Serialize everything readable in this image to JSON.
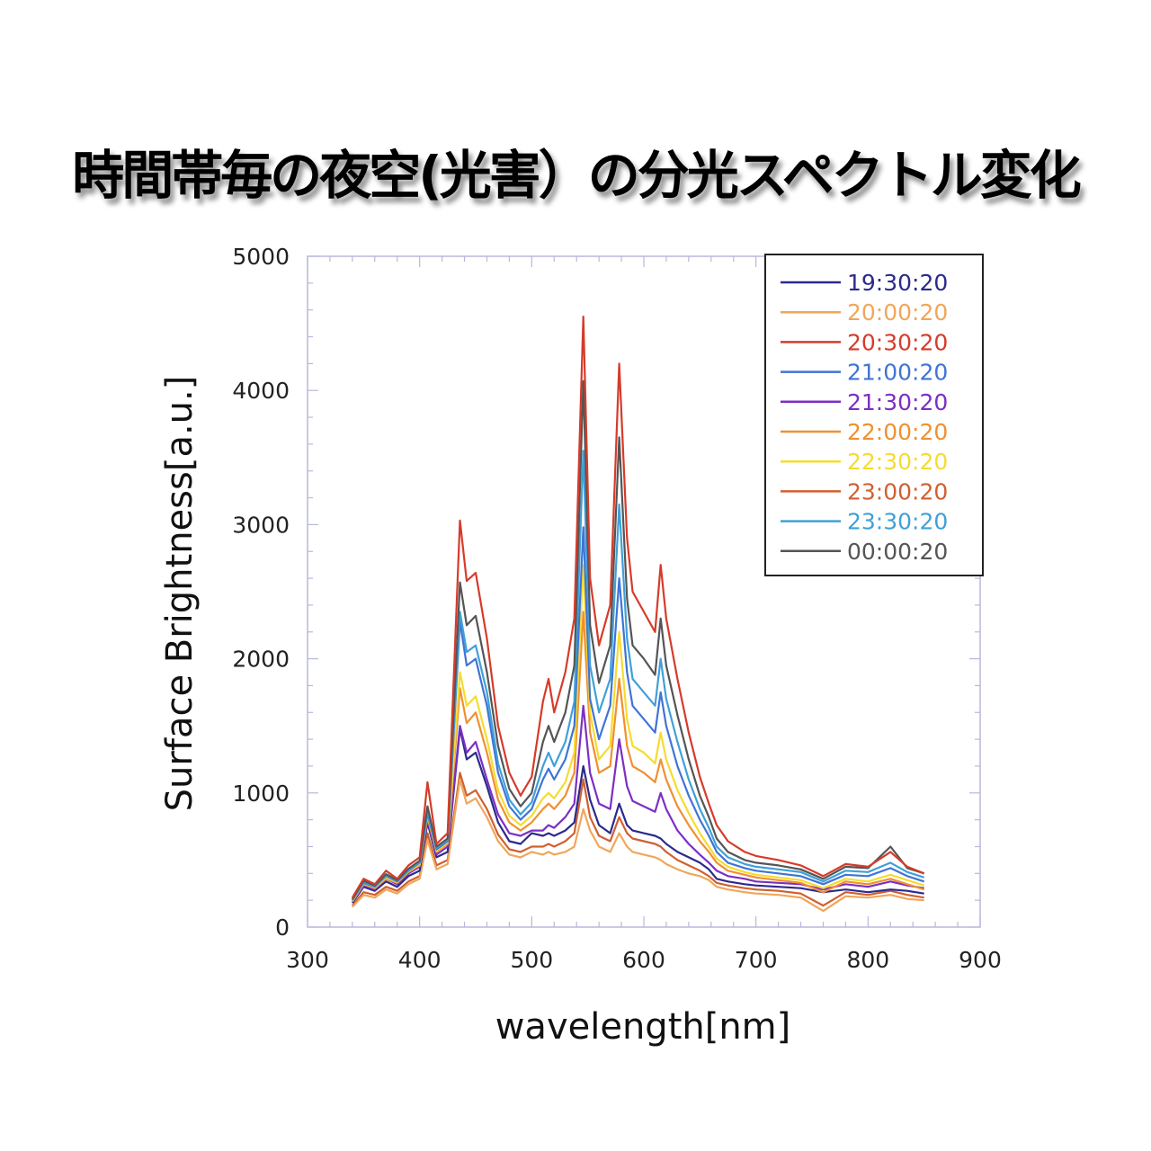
{
  "title": "時間帯毎の夜空(光害）の分光スペクトル変化",
  "chart_data": {
    "type": "line",
    "title": "時間帯毎の夜空(光害）の分光スペクトル変化",
    "xlabel": "wavelength[nm]",
    "ylabel": "Surface Brightness[a.u.]",
    "xlim": [
      300,
      900
    ],
    "ylim": [
      0,
      5000
    ],
    "xticks": [
      "300",
      "400",
      "500",
      "600",
      "700",
      "800",
      "900"
    ],
    "yticks": [
      "0",
      "1000",
      "2000",
      "3000",
      "4000",
      "5000"
    ],
    "grid": false,
    "legend_position": "top-right",
    "x": [
      340,
      350,
      360,
      370,
      380,
      390,
      400,
      407,
      415,
      425,
      436,
      442,
      450,
      460,
      470,
      480,
      490,
      500,
      510,
      515,
      520,
      530,
      538,
      546,
      552,
      560,
      570,
      578,
      585,
      590,
      600,
      610,
      615,
      620,
      630,
      640,
      650,
      658,
      665,
      675,
      690,
      700,
      720,
      740,
      760,
      780,
      800,
      820,
      835,
      850
    ],
    "series": [
      {
        "name": "19:30:20",
        "color": "#2b2a8c",
        "values": [
          180,
          300,
          270,
          340,
          300,
          380,
          420,
          780,
          520,
          560,
          1480,
          1250,
          1300,
          1050,
          780,
          640,
          620,
          700,
          680,
          700,
          680,
          720,
          780,
          1200,
          950,
          760,
          700,
          920,
          760,
          720,
          700,
          680,
          660,
          620,
          560,
          520,
          480,
          430,
          360,
          340,
          320,
          310,
          300,
          290,
          260,
          280,
          260,
          280,
          270,
          250
        ]
      },
      {
        "name": "20:00:20",
        "color": "#f0a65a",
        "values": [
          150,
          240,
          220,
          280,
          250,
          320,
          360,
          650,
          430,
          470,
          1100,
          920,
          960,
          820,
          640,
          540,
          520,
          560,
          540,
          560,
          540,
          560,
          600,
          880,
          720,
          600,
          560,
          700,
          600,
          560,
          540,
          520,
          500,
          470,
          430,
          400,
          380,
          350,
          300,
          280,
          260,
          250,
          240,
          220,
          120,
          230,
          220,
          240,
          210,
          200
        ]
      },
      {
        "name": "20:30:20",
        "color": "#d63b2a",
        "values": [
          220,
          360,
          320,
          420,
          360,
          460,
          520,
          1080,
          620,
          700,
          3030,
          2580,
          2640,
          2150,
          1500,
          1150,
          980,
          1120,
          1680,
          1850,
          1600,
          1900,
          2300,
          4550,
          2600,
          2100,
          2400,
          4200,
          2900,
          2500,
          2350,
          2200,
          2700,
          2300,
          1850,
          1450,
          1120,
          920,
          760,
          640,
          560,
          530,
          500,
          460,
          380,
          470,
          450,
          560,
          450,
          400
        ]
      },
      {
        "name": "21:00:20",
        "color": "#3f74d6",
        "values": [
          200,
          330,
          300,
          380,
          340,
          420,
          480,
          850,
          580,
          640,
          2280,
          1950,
          2000,
          1650,
          1150,
          900,
          800,
          880,
          1100,
          1180,
          1100,
          1250,
          1500,
          2980,
          1700,
          1400,
          1650,
          2600,
          1900,
          1650,
          1550,
          1450,
          1750,
          1500,
          1200,
          980,
          800,
          680,
          560,
          480,
          440,
          420,
          400,
          380,
          320,
          390,
          380,
          440,
          380,
          340
        ]
      },
      {
        "name": "21:30:20",
        "color": "#7b2fc4",
        "values": [
          190,
          310,
          280,
          360,
          320,
          400,
          450,
          800,
          540,
          600,
          1500,
          1300,
          1380,
          1100,
          840,
          700,
          680,
          720,
          720,
          760,
          740,
          820,
          920,
          1650,
          1150,
          920,
          880,
          1400,
          1050,
          940,
          900,
          860,
          1000,
          880,
          720,
          620,
          540,
          480,
          420,
          380,
          360,
          340,
          330,
          320,
          280,
          320,
          300,
          340,
          310,
          290
        ]
      },
      {
        "name": "22:00:20",
        "color": "#f09030",
        "values": [
          190,
          320,
          290,
          360,
          330,
          410,
          460,
          820,
          560,
          620,
          1780,
          1520,
          1600,
          1300,
          950,
          780,
          720,
          780,
          880,
          920,
          880,
          980,
          1150,
          2350,
          1450,
          1150,
          1200,
          1850,
          1350,
          1200,
          1150,
          1080,
          1250,
          1100,
          900,
          760,
          640,
          560,
          480,
          420,
          390,
          370,
          350,
          330,
          260,
          340,
          320,
          360,
          320,
          280
        ]
      },
      {
        "name": "22:30:20",
        "color": "#f5dc30",
        "values": [
          195,
          325,
          295,
          370,
          335,
          415,
          470,
          840,
          570,
          630,
          1900,
          1650,
          1720,
          1400,
          1020,
          830,
          760,
          830,
          960,
          1000,
          960,
          1080,
          1300,
          2700,
          1600,
          1250,
          1350,
          2200,
          1550,
          1350,
          1300,
          1220,
          1450,
          1250,
          1020,
          850,
          700,
          600,
          510,
          450,
          410,
          390,
          370,
          350,
          290,
          360,
          340,
          390,
          350,
          310
        ]
      },
      {
        "name": "23:00:20",
        "color": "#d06030",
        "values": [
          160,
          260,
          240,
          300,
          270,
          340,
          380,
          700,
          460,
          500,
          1150,
          980,
          1020,
          880,
          690,
          580,
          560,
          600,
          600,
          620,
          600,
          640,
          700,
          1100,
          820,
          680,
          640,
          820,
          700,
          660,
          640,
          620,
          600,
          560,
          500,
          460,
          420,
          380,
          330,
          310,
          290,
          280,
          270,
          250,
          160,
          260,
          240,
          270,
          240,
          220
        ]
      },
      {
        "name": "23:30:20",
        "color": "#3fa0d8",
        "values": [
          205,
          335,
          305,
          385,
          345,
          425,
          485,
          870,
          590,
          650,
          2350,
          2050,
          2100,
          1750,
          1220,
          950,
          840,
          930,
          1200,
          1300,
          1200,
          1380,
          1680,
          3550,
          1950,
          1600,
          1850,
          3150,
          2150,
          1850,
          1750,
          1650,
          2000,
          1700,
          1380,
          1100,
          880,
          740,
          600,
          520,
          470,
          450,
          430,
          410,
          340,
          420,
          410,
          480,
          410,
          370
        ]
      },
      {
        "name": "00:00:20",
        "color": "#555555",
        "values": [
          210,
          345,
          310,
          395,
          350,
          435,
          495,
          900,
          600,
          660,
          2570,
          2250,
          2320,
          1900,
          1350,
          1030,
          900,
          1000,
          1380,
          1500,
          1380,
          1600,
          1950,
          4070,
          2250,
          1820,
          2100,
          3650,
          2450,
          2100,
          2000,
          1880,
          2300,
          1950,
          1580,
          1250,
          980,
          820,
          660,
          560,
          500,
          480,
          460,
          430,
          360,
          450,
          440,
          600,
          440,
          400
        ]
      }
    ]
  }
}
